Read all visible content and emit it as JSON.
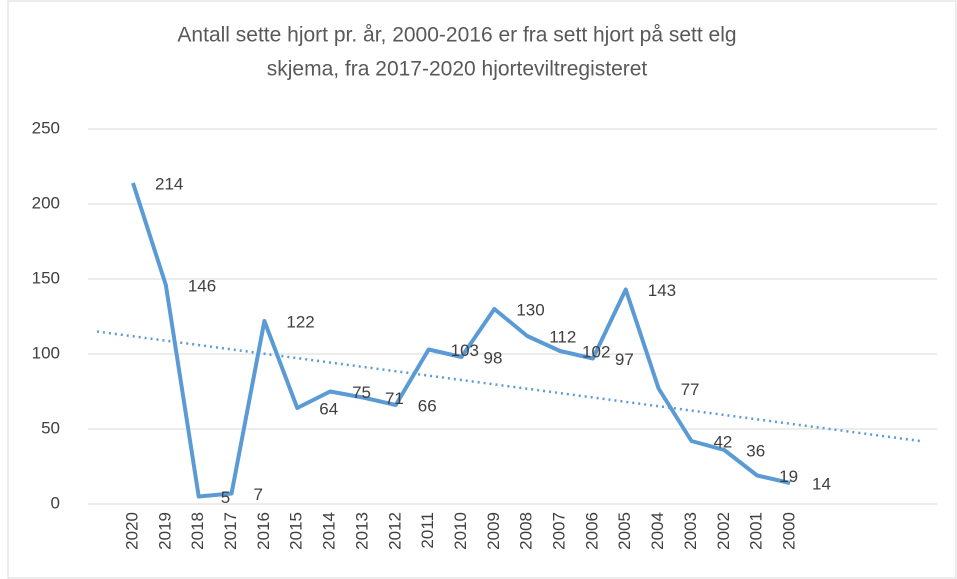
{
  "chart_data": {
    "type": "line",
    "title": [
      "Antall sette hjort pr. år, 2000-2016 er fra sett hjort på sett elg",
      "skjema, fra 2017-2020 hjorteviltregisteret"
    ],
    "categories": [
      "2020",
      "2019",
      "2018",
      "2017",
      "2016",
      "2015",
      "2014",
      "2013",
      "2012",
      "2011",
      "2010",
      "2009",
      "2008",
      "2007",
      "2006",
      "2005",
      "2004",
      "2003",
      "2002",
      "2001",
      "2000"
    ],
    "series": [
      {
        "color": "#5b9bd5",
        "values": [
          214,
          146,
          5,
          7,
          122,
          64,
          75,
          71,
          66,
          103,
          98,
          130,
          112,
          102,
          97,
          143,
          77,
          42,
          36,
          19,
          14
        ]
      }
    ],
    "trendline": {
      "color": "#5b9bd5",
      "values": [
        115,
        42
      ]
    },
    "ylim": [
      0,
      250
    ],
    "yticks": [
      0,
      50,
      100,
      150,
      200,
      250
    ],
    "grid": true
  }
}
